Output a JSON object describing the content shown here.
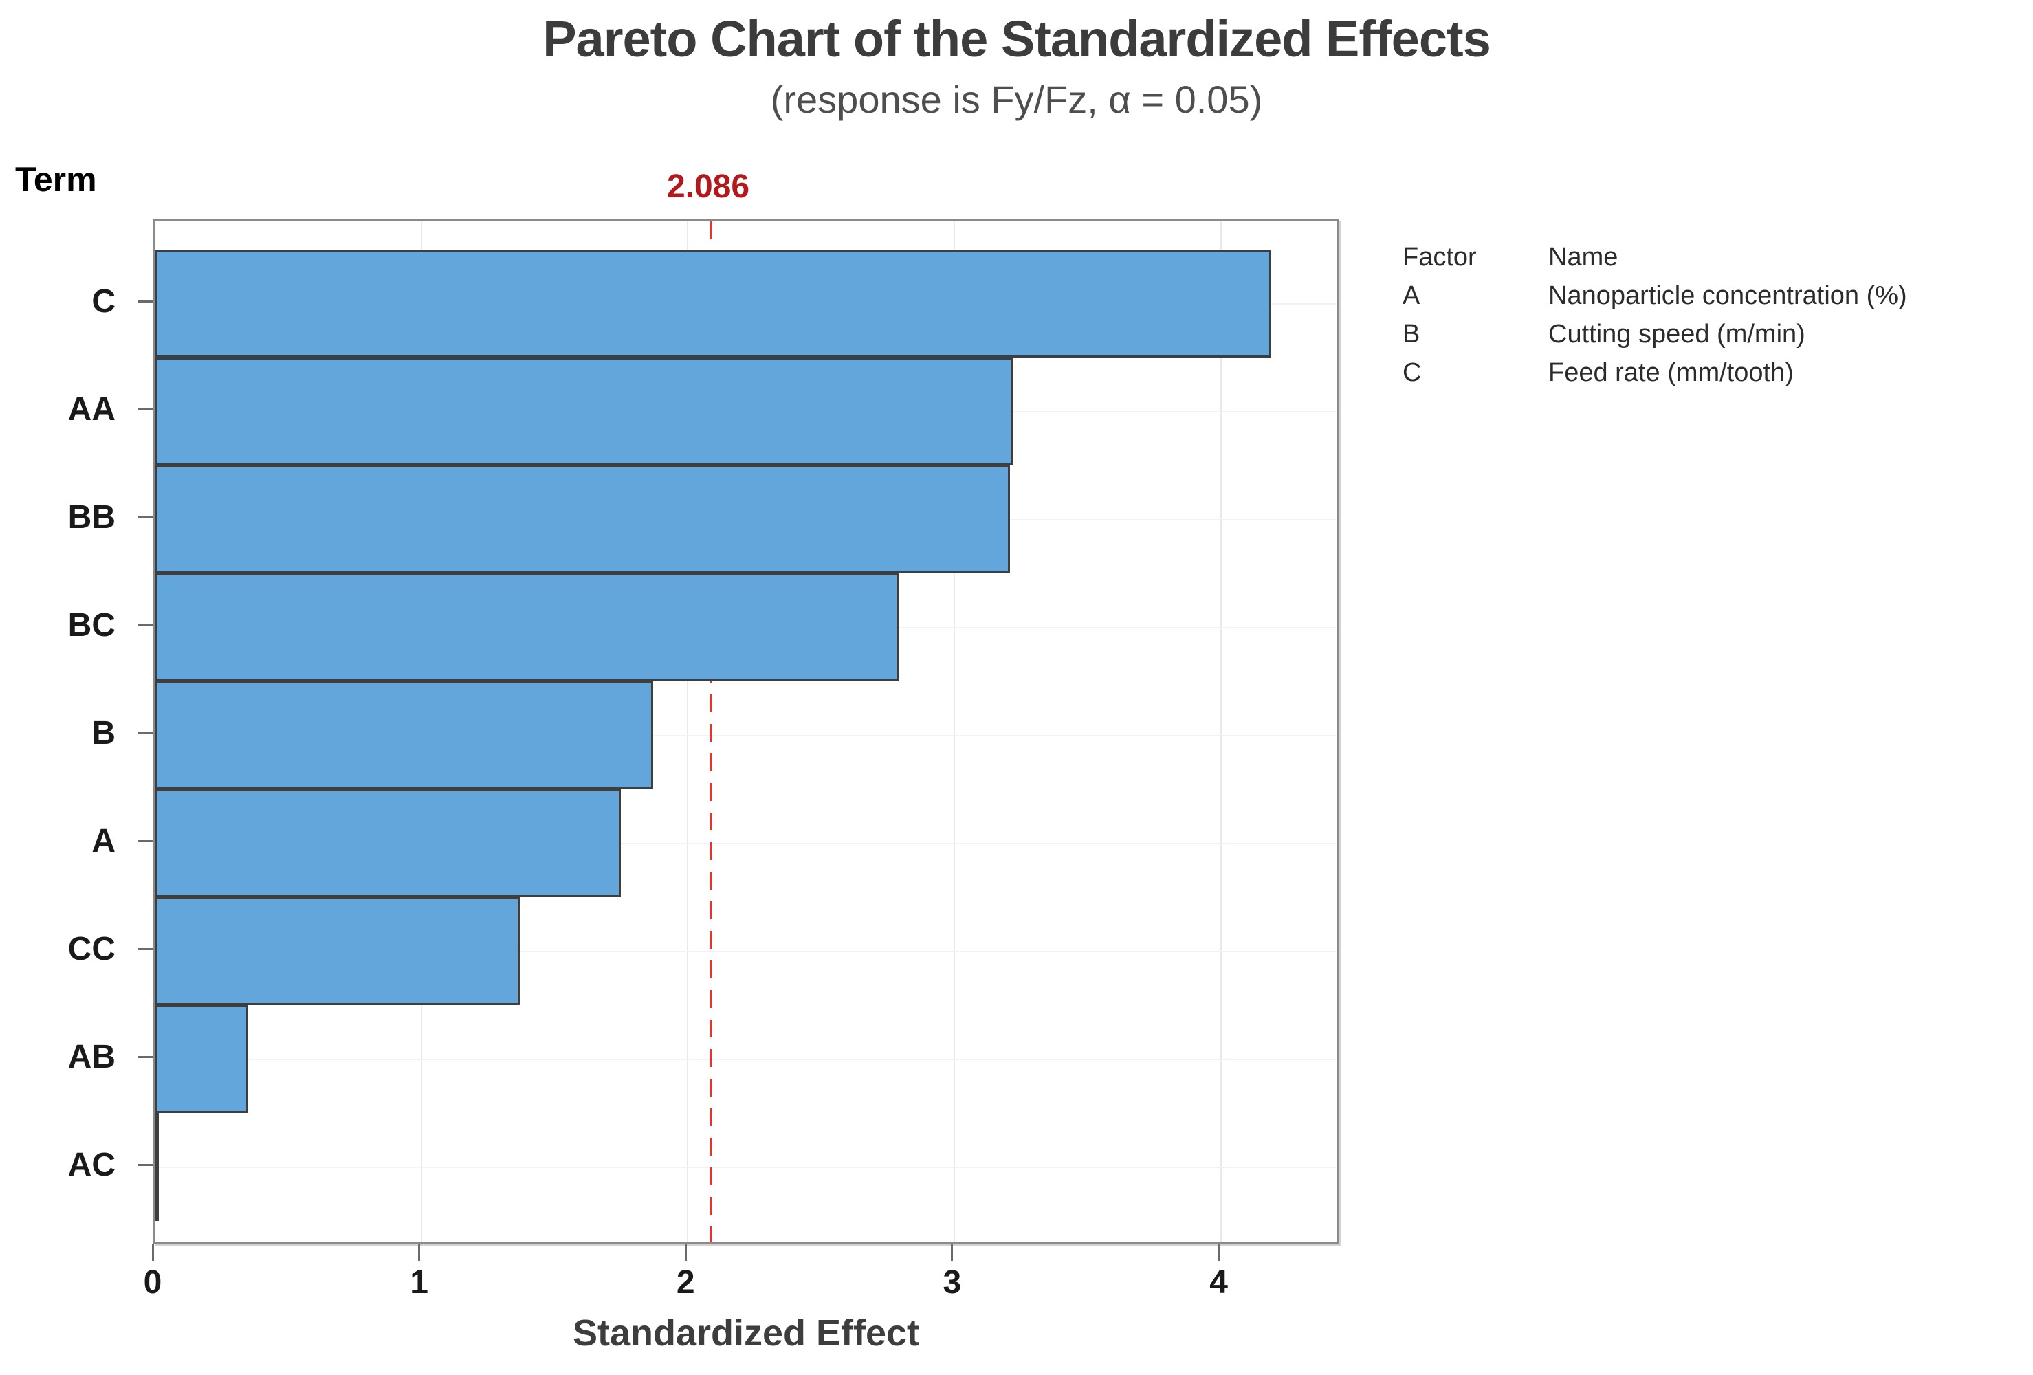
{
  "header": {
    "title": "Pareto Chart of the Standardized Effects",
    "subtitle": "(response is Fy/Fz, α = 0.05)"
  },
  "chart_data": {
    "type": "bar",
    "orientation": "horizontal",
    "title": "Pareto Chart of the Standardized Effects",
    "subtitle": "(response is Fy/Fz, α = 0.05)",
    "categories": [
      "C",
      "AA",
      "BB",
      "BC",
      "B",
      "A",
      "CC",
      "AB",
      "AC"
    ],
    "values": [
      4.19,
      3.22,
      3.21,
      2.79,
      1.87,
      1.75,
      1.37,
      0.35,
      0.01
    ],
    "xlabel": "Standardized Effect",
    "ylabel": "Term",
    "xlim": [
      0,
      4.45
    ],
    "x_ticks": [
      0,
      1,
      2,
      3,
      4
    ],
    "grid": true,
    "legend_position": "right",
    "reference_line": {
      "value": 2.086,
      "label": "2.086"
    },
    "bar_color": "#63a6db",
    "bar_border_color": "#3e3e3e",
    "reference_color": "#ed3124",
    "reference_label_color": "#b3191c"
  },
  "legend": {
    "header": {
      "factor": "Factor",
      "name": "Name"
    },
    "rows": [
      {
        "factor": "A",
        "name": "Nanoparticle concentration (%)"
      },
      {
        "factor": "B",
        "name": "Cutting speed (m/min)"
      },
      {
        "factor": "C",
        "name": "Feed rate (mm/tooth)"
      }
    ]
  }
}
